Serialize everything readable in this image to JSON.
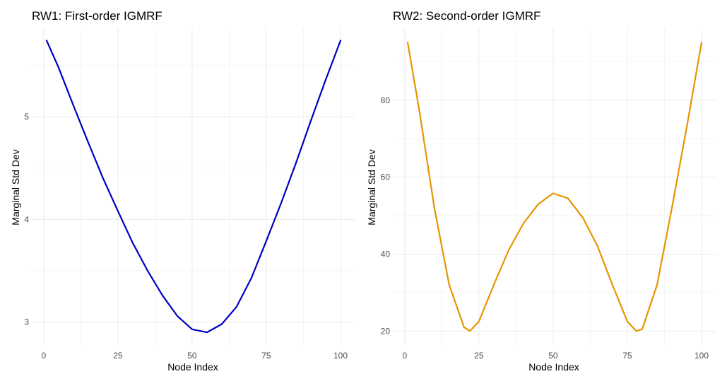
{
  "chart_data": [
    {
      "type": "line",
      "title": "RW1: First-order IGMRF",
      "xlabel": "Node Index",
      "ylabel": "Marginal Std Dev",
      "xlim": [
        -4,
        105
      ],
      "ylim": [
        2.77,
        5.86
      ],
      "x_ticks": [
        0,
        25,
        50,
        75,
        100
      ],
      "x_tick_labels": [
        "0",
        "25",
        "50",
        "75",
        "100"
      ],
      "y_ticks": [
        3,
        4,
        5
      ],
      "y_tick_labels": [
        "3",
        "4",
        "5"
      ],
      "grid": true,
      "color": "#0000c0",
      "series": [
        {
          "x": [
            1,
            5,
            10,
            15,
            20,
            25,
            30,
            35,
            40,
            45,
            50,
            55,
            60,
            65,
            70,
            75,
            80,
            85,
            90,
            95,
            100
          ],
          "y": [
            5.74,
            5.48,
            5.11,
            4.75,
            4.4,
            4.08,
            3.77,
            3.5,
            3.26,
            3.06,
            2.93,
            2.9,
            2.98,
            3.15,
            3.43,
            3.79,
            4.16,
            4.55,
            4.96,
            5.36,
            5.74
          ]
        }
      ]
    },
    {
      "type": "line",
      "title": "RW2: Second-order IGMRF",
      "xlabel": "Node Index",
      "ylabel": "Marginal Std Dev",
      "xlim": [
        -4,
        105
      ],
      "ylim": [
        16.2,
        98.7
      ],
      "x_ticks": [
        0,
        25,
        50,
        75,
        100
      ],
      "x_tick_labels": [
        "0",
        "25",
        "50",
        "75",
        "100"
      ],
      "y_ticks": [
        20,
        40,
        60,
        80
      ],
      "y_tick_labels": [
        "20",
        "40",
        "60",
        "80"
      ],
      "grid": true,
      "color": "#e69500",
      "series": [
        {
          "x": [
            1,
            5,
            10,
            15,
            20,
            22,
            25,
            30,
            35,
            40,
            45,
            50,
            55,
            60,
            65,
            70,
            75,
            78,
            80,
            85,
            90,
            95,
            100
          ],
          "y": [
            95,
            77,
            52,
            32,
            21,
            20,
            22.5,
            32,
            41,
            48,
            53,
            55.8,
            54.5,
            49.5,
            42,
            32,
            22.5,
            20,
            20.5,
            32,
            52,
            73,
            95
          ]
        }
      ]
    }
  ]
}
